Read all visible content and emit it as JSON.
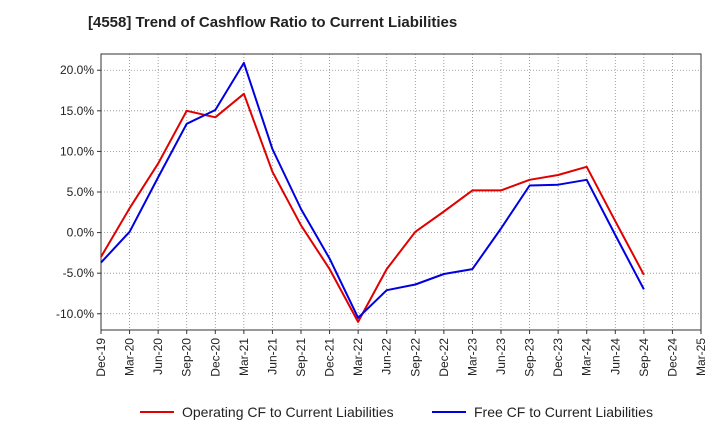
{
  "chart_data": {
    "type": "line",
    "title": "[4558]  Trend of Cashflow Ratio to Current Liabilities",
    "xlabel": "",
    "ylabel": "",
    "ylim": [
      -12,
      22
    ],
    "yticks": [
      -10,
      -5,
      0,
      5,
      10,
      15,
      20
    ],
    "ytick_labels": [
      "-10.0%",
      "-5.0%",
      "0.0%",
      "5.0%",
      "10.0%",
      "15.0%",
      "20.0%"
    ],
    "categories": [
      "Dec-19",
      "Mar-20",
      "Jun-20",
      "Sep-20",
      "Dec-20",
      "Mar-21",
      "Jun-21",
      "Sep-21",
      "Dec-21",
      "Mar-22",
      "Jun-22",
      "Sep-22",
      "Dec-22",
      "Mar-23",
      "Jun-23",
      "Sep-23",
      "Dec-23",
      "Mar-24",
      "Jun-24",
      "Sep-24",
      "Dec-24",
      "Mar-25"
    ],
    "grid": true,
    "legend_position": "bottom",
    "series": [
      {
        "name": "Operating CF to Current Liabilities",
        "color": "#e00000",
        "values": [
          -3.0,
          3.0,
          8.5,
          15.0,
          14.2,
          17.1,
          7.5,
          0.9,
          -4.5,
          -11.0,
          -4.5,
          0.1,
          2.6,
          5.2,
          5.2,
          6.5,
          7.1,
          8.1,
          1.4,
          -5.2,
          null,
          null
        ]
      },
      {
        "name": "Free CF to Current Liabilities",
        "color": "#0000e0",
        "values": [
          -3.7,
          0.1,
          6.8,
          13.4,
          15.1,
          20.9,
          10.3,
          2.9,
          -3.2,
          -10.5,
          -7.1,
          -6.4,
          -5.1,
          -4.5,
          0.5,
          5.8,
          5.9,
          6.5,
          -0.3,
          -7.0,
          null,
          null
        ]
      }
    ]
  }
}
